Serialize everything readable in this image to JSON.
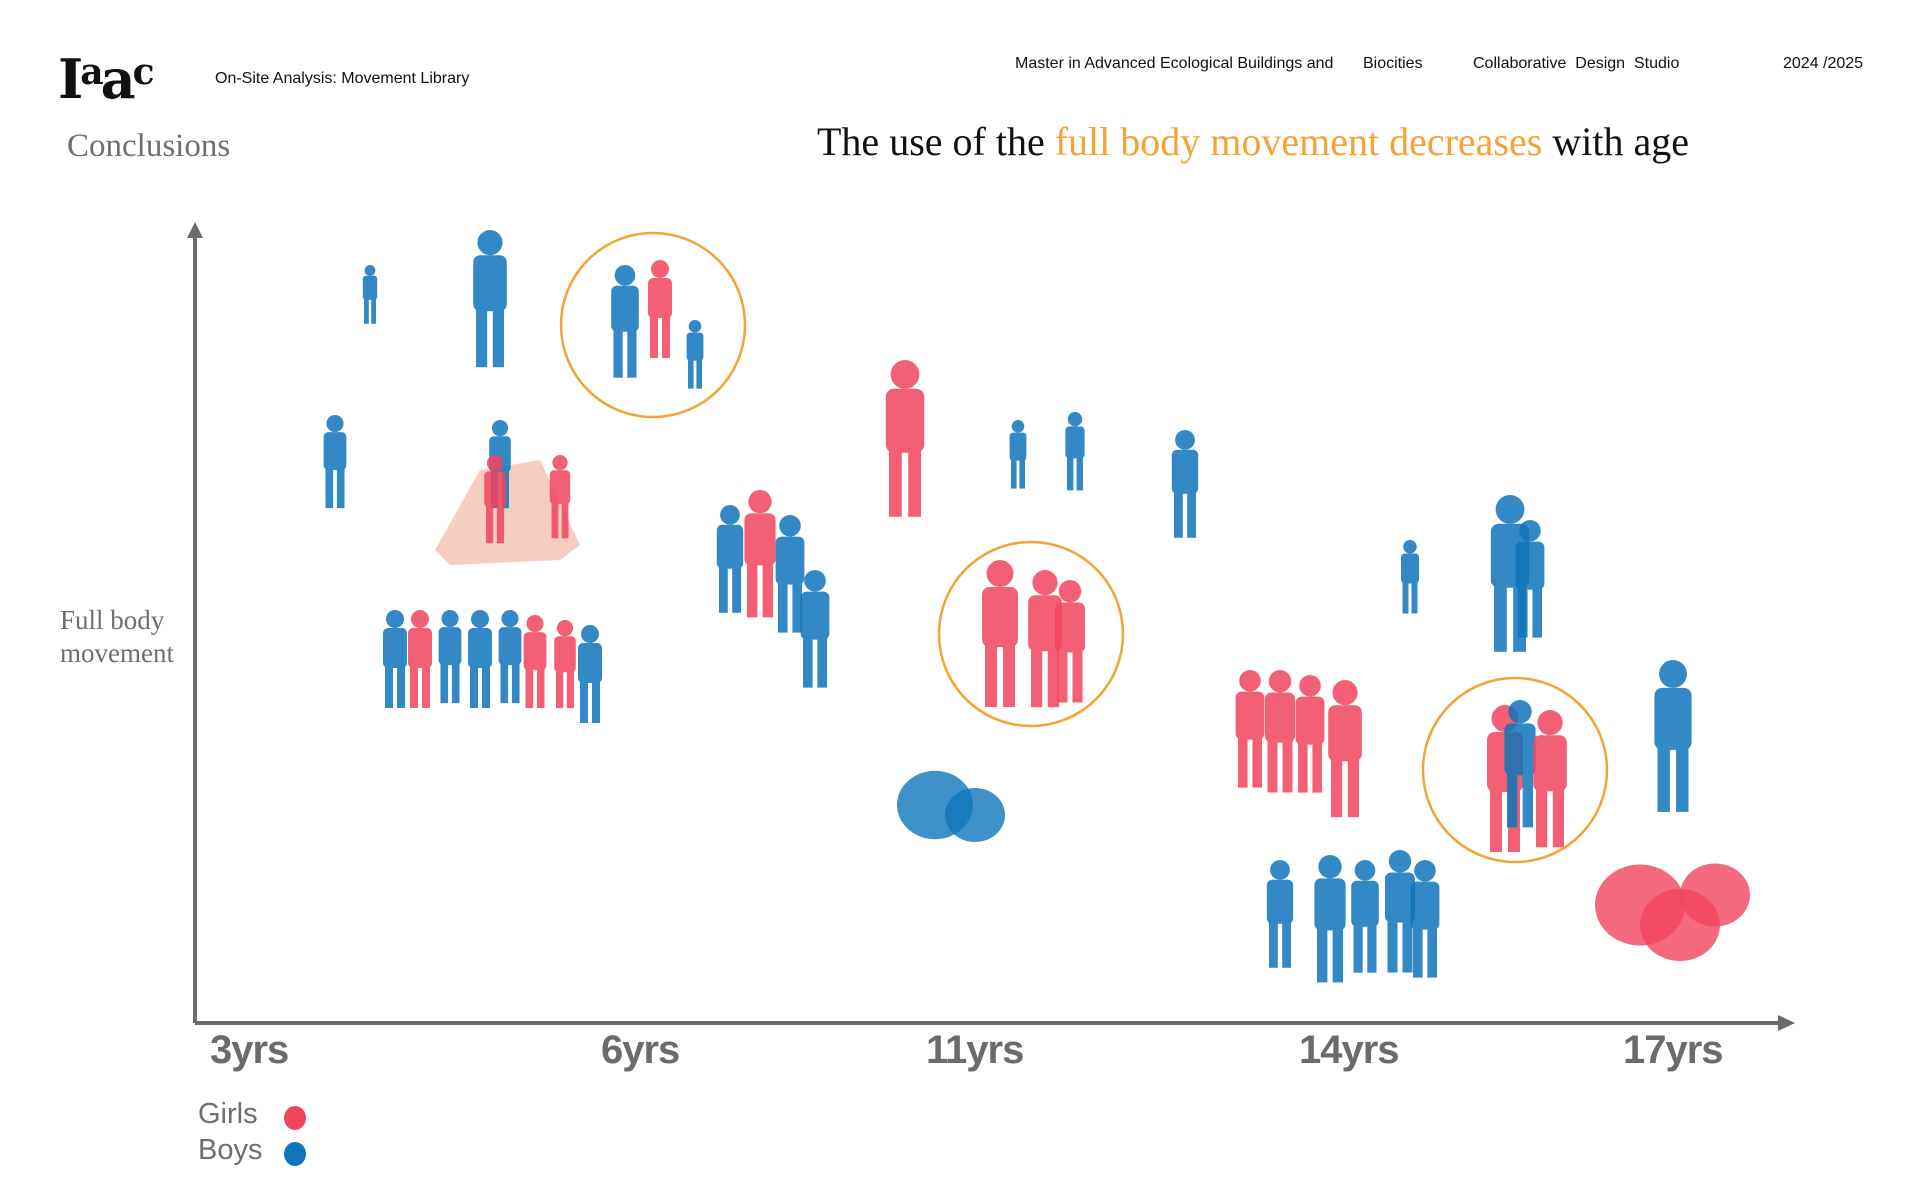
{
  "header": {
    "logo": "Iaac",
    "subtitle": "On-Site Analysis: Movement Library",
    "program": "Master in Advanced Ecological Buildings and",
    "program2": "Biocities",
    "studio": "Collaborative  Design  Studio",
    "year": "2024 /2025"
  },
  "section": "Conclusions",
  "title": {
    "pre": "The use of the ",
    "highlight": "full body movement decreases",
    "post": " with age"
  },
  "colors": {
    "girls": "#f2445e",
    "boys": "#0f75bb",
    "highlight": "#f4a336",
    "axis": "#6b6b6b"
  },
  "chart_data": {
    "type": "scatter",
    "ylabel": "Full body movement",
    "x_ticks": [
      "3yrs",
      "6yrs",
      "11yrs",
      "14yrs",
      "17yrs"
    ],
    "legend": [
      {
        "name": "Girls",
        "color": "#f2445e"
      },
      {
        "name": "Boys",
        "color": "#0f75bb"
      }
    ]
  }
}
